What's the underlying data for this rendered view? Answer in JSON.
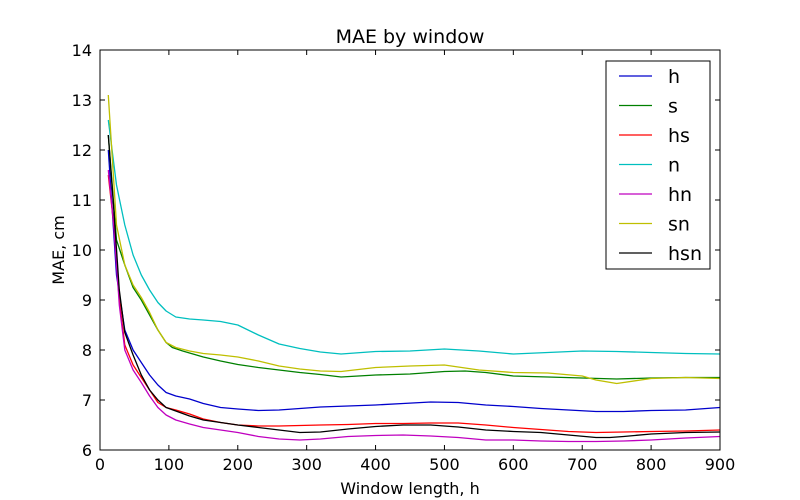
{
  "chart_data": {
    "type": "line",
    "title": "MAE by window",
    "xlabel": "Window length, h",
    "ylabel": "MAE, cm",
    "xlim": [
      0,
      900
    ],
    "ylim": [
      6,
      14
    ],
    "xticks": [
      "0",
      "100",
      "200",
      "300",
      "400",
      "500",
      "600",
      "700",
      "800",
      "900"
    ],
    "yticks": [
      "6",
      "7",
      "8",
      "9",
      "10",
      "11",
      "12",
      "13",
      "14"
    ],
    "grid": false,
    "legend_position": "top-right",
    "series": [
      {
        "name": "h",
        "color": "#0000cc",
        "x": [
          12,
          24,
          36,
          48,
          60,
          72,
          84,
          96,
          110,
          130,
          150,
          175,
          200,
          230,
          260,
          290,
          320,
          360,
          400,
          440,
          480,
          520,
          560,
          600,
          640,
          680,
          720,
          760,
          800,
          850,
          900
        ],
        "y": [
          12.0,
          9.5,
          8.4,
          8.0,
          7.75,
          7.5,
          7.3,
          7.15,
          7.08,
          7.02,
          6.93,
          6.85,
          6.82,
          6.79,
          6.8,
          6.83,
          6.86,
          6.88,
          6.9,
          6.93,
          6.96,
          6.95,
          6.9,
          6.87,
          6.83,
          6.8,
          6.77,
          6.77,
          6.79,
          6.8,
          6.85
        ]
      },
      {
        "name": "s",
        "color": "#008000",
        "x": [
          12,
          24,
          36,
          48,
          60,
          72,
          84,
          96,
          105,
          120,
          150,
          175,
          200,
          230,
          260,
          290,
          320,
          350,
          400,
          450,
          500,
          530,
          560,
          600,
          650,
          700,
          750,
          800,
          850,
          900
        ],
        "y": [
          12.3,
          10.2,
          9.7,
          9.25,
          9.0,
          8.7,
          8.4,
          8.15,
          8.05,
          7.98,
          7.86,
          7.78,
          7.71,
          7.65,
          7.6,
          7.55,
          7.51,
          7.46,
          7.5,
          7.52,
          7.57,
          7.58,
          7.55,
          7.48,
          7.46,
          7.44,
          7.42,
          7.44,
          7.45,
          7.45
        ]
      },
      {
        "name": "hs",
        "color": "#ff0000",
        "x": [
          12,
          20,
          28,
          36,
          48,
          60,
          72,
          84,
          96,
          110,
          130,
          150,
          175,
          200,
          230,
          260,
          290,
          320,
          360,
          400,
          440,
          480,
          520,
          560,
          600,
          640,
          680,
          720,
          760,
          800,
          850,
          900
        ],
        "y": [
          11.5,
          10.5,
          9.0,
          8.1,
          7.7,
          7.45,
          7.2,
          6.95,
          6.85,
          6.8,
          6.72,
          6.62,
          6.55,
          6.5,
          6.48,
          6.48,
          6.49,
          6.5,
          6.51,
          6.53,
          6.53,
          6.54,
          6.54,
          6.5,
          6.45,
          6.41,
          6.37,
          6.35,
          6.36,
          6.37,
          6.38,
          6.4
        ]
      },
      {
        "name": "n",
        "color": "#00bfbf",
        "x": [
          12,
          24,
          36,
          48,
          60,
          72,
          84,
          96,
          110,
          130,
          150,
          175,
          200,
          230,
          260,
          290,
          320,
          350,
          400,
          450,
          500,
          550,
          600,
          650,
          700,
          750,
          800,
          850,
          900
        ],
        "y": [
          12.6,
          11.3,
          10.5,
          9.9,
          9.5,
          9.2,
          8.95,
          8.78,
          8.66,
          8.62,
          8.6,
          8.57,
          8.5,
          8.3,
          8.12,
          8.03,
          7.96,
          7.92,
          7.97,
          7.98,
          8.02,
          7.98,
          7.92,
          7.95,
          7.98,
          7.97,
          7.95,
          7.93,
          7.92
        ]
      },
      {
        "name": "hn",
        "color": "#bf00bf",
        "x": [
          12,
          20,
          28,
          36,
          48,
          60,
          72,
          84,
          96,
          110,
          130,
          150,
          175,
          200,
          230,
          260,
          290,
          320,
          360,
          400,
          440,
          480,
          520,
          560,
          600,
          640,
          680,
          720,
          760,
          800,
          850,
          900
        ],
        "y": [
          11.6,
          10.5,
          8.9,
          8.0,
          7.6,
          7.35,
          7.08,
          6.85,
          6.7,
          6.6,
          6.52,
          6.45,
          6.4,
          6.35,
          6.27,
          6.22,
          6.2,
          6.22,
          6.27,
          6.29,
          6.3,
          6.28,
          6.25,
          6.2,
          6.2,
          6.18,
          6.17,
          6.17,
          6.18,
          6.2,
          6.24,
          6.27
        ]
      },
      {
        "name": "sn",
        "color": "#bfbf00",
        "x": [
          12,
          24,
          36,
          48,
          60,
          72,
          84,
          96,
          110,
          130,
          150,
          175,
          200,
          230,
          260,
          290,
          320,
          350,
          400,
          450,
          500,
          550,
          600,
          650,
          700,
          720,
          750,
          800,
          850,
          900
        ],
        "y": [
          13.1,
          10.5,
          9.7,
          9.3,
          9.05,
          8.75,
          8.4,
          8.15,
          8.05,
          7.98,
          7.93,
          7.9,
          7.86,
          7.78,
          7.68,
          7.62,
          7.58,
          7.57,
          7.65,
          7.68,
          7.7,
          7.6,
          7.55,
          7.54,
          7.48,
          7.4,
          7.33,
          7.43,
          7.45,
          7.43
        ]
      },
      {
        "name": "hsn",
        "color": "#000000",
        "x": [
          12,
          20,
          28,
          36,
          48,
          60,
          72,
          84,
          96,
          110,
          130,
          150,
          175,
          200,
          230,
          260,
          290,
          320,
          360,
          400,
          440,
          480,
          520,
          560,
          600,
          640,
          680,
          720,
          740,
          760,
          800,
          850,
          900
        ],
        "y": [
          12.3,
          10.8,
          9.2,
          8.35,
          7.9,
          7.5,
          7.2,
          7.0,
          6.85,
          6.78,
          6.68,
          6.6,
          6.55,
          6.5,
          6.45,
          6.4,
          6.35,
          6.36,
          6.42,
          6.47,
          6.5,
          6.5,
          6.46,
          6.4,
          6.37,
          6.35,
          6.3,
          6.25,
          6.25,
          6.27,
          6.32,
          6.35,
          6.36
        ]
      }
    ]
  }
}
